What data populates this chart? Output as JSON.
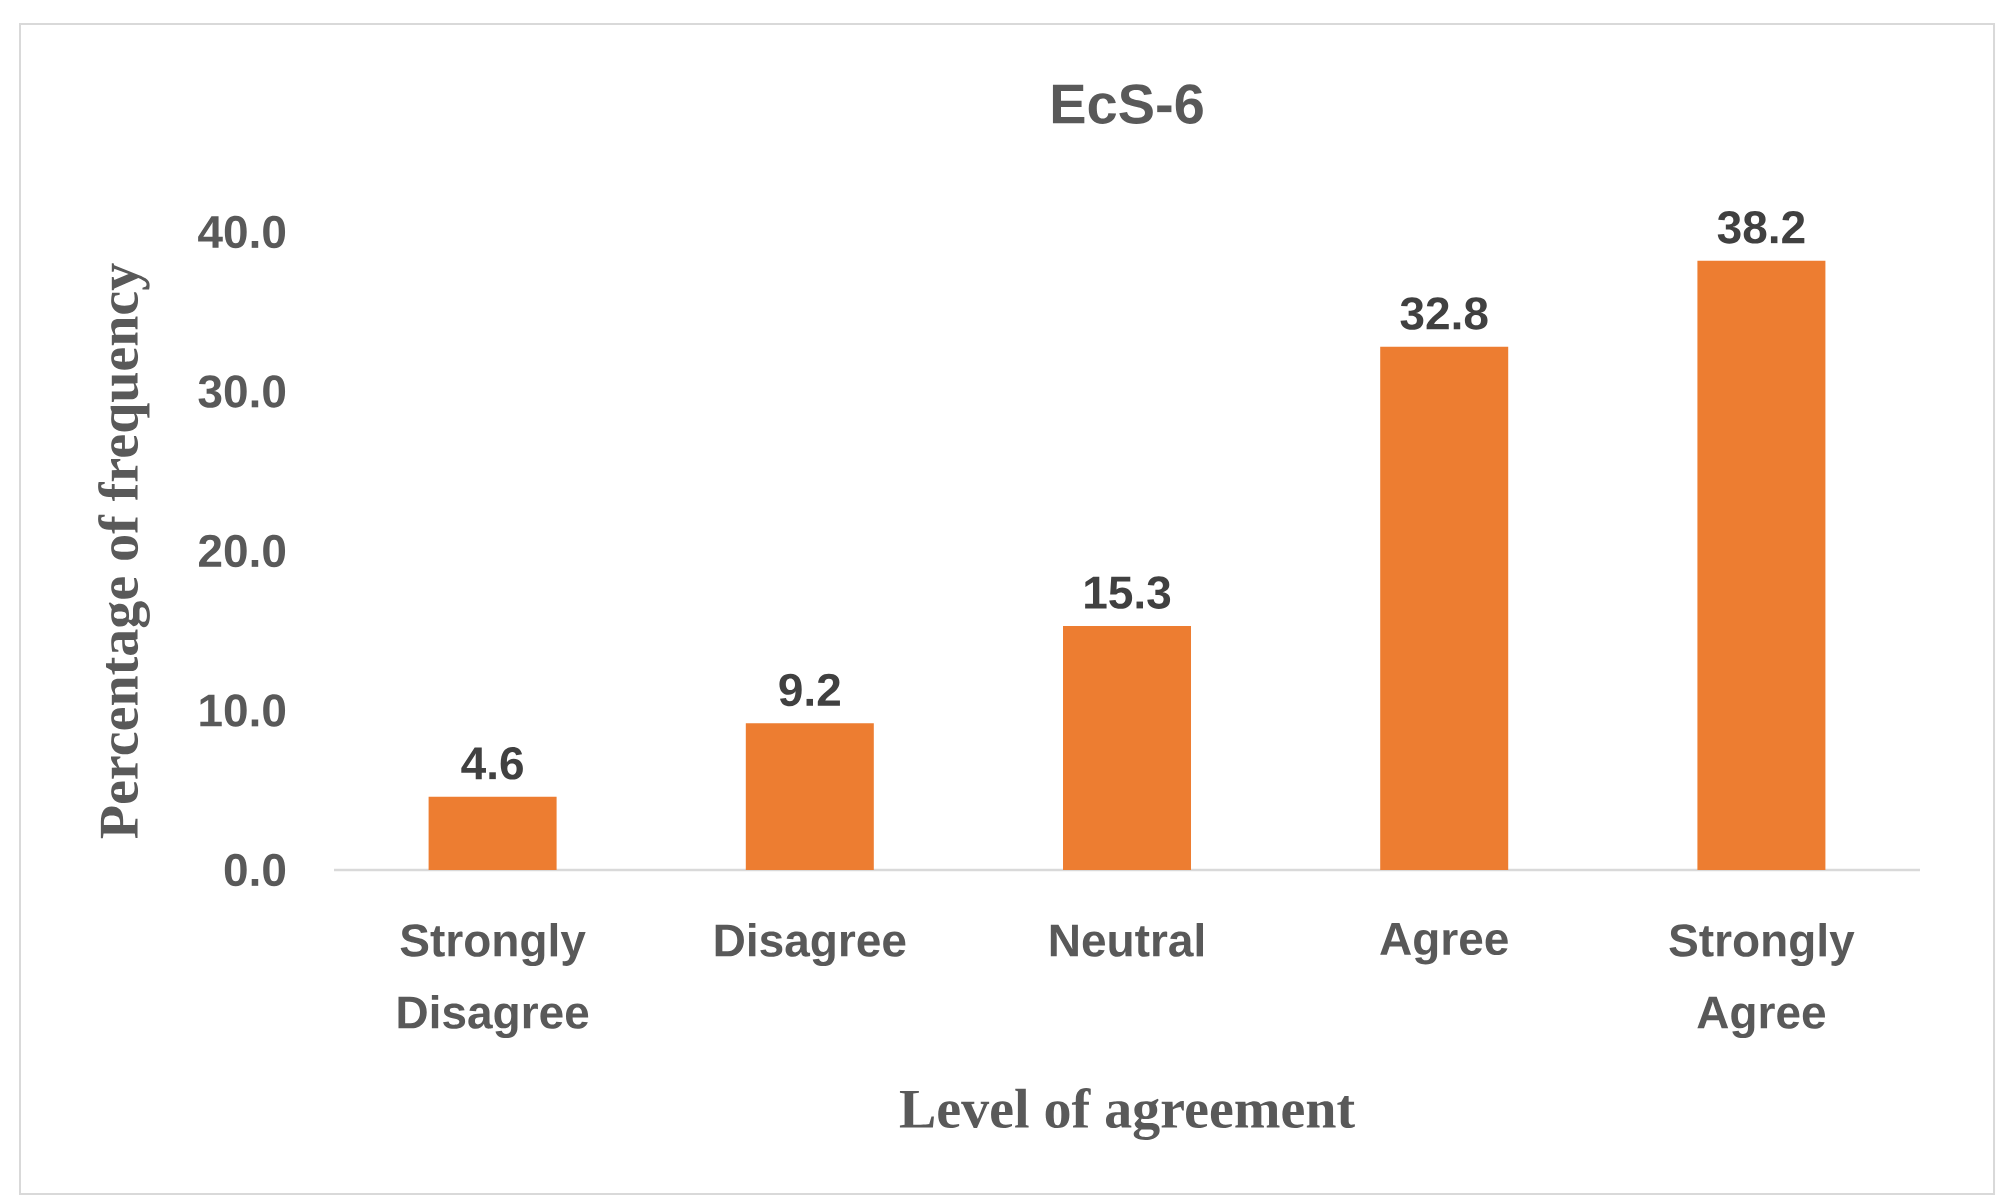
{
  "chart_data": {
    "type": "bar",
    "title": "EcS-6",
    "xlabel": "Level of agreement",
    "ylabel": "Percentage of frequency",
    "categories": [
      "Strongly Disagree",
      "Disagree",
      "Neutral",
      "Agree",
      "Strongly Agree"
    ],
    "values": [
      4.6,
      9.2,
      15.3,
      32.8,
      38.2
    ],
    "color": "#ed7d31",
    "ylim": [
      0,
      40
    ],
    "yticks": [
      {
        "value": 0,
        "label": "0.0"
      },
      {
        "value": 10,
        "label": "10.0"
      },
      {
        "value": 20,
        "label": "20.0"
      },
      {
        "value": 30,
        "label": "30.0"
      },
      {
        "value": 40,
        "label": "40.0"
      }
    ],
    "data_labels": true
  }
}
